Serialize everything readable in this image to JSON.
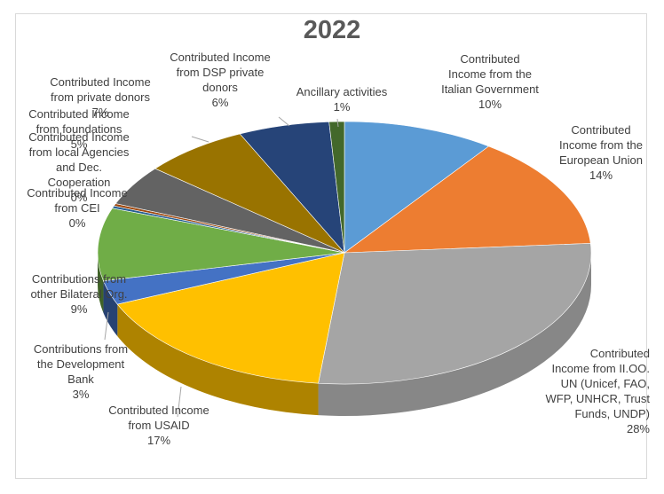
{
  "chart_data": {
    "type": "pie",
    "title": "2022",
    "slices": [
      {
        "label": "Contributed Income from the Italian Government",
        "value": 10,
        "display": "10%",
        "color": "#5b9bd5"
      },
      {
        "label": "Contributed Income from the European Union",
        "value": 14,
        "display": "14%",
        "color": "#ed7d31"
      },
      {
        "label": "Contributed Income from II.OO. UN (Unicef, FAO, WFP, UNHCR, Trust Funds, UNDP)",
        "value": 28,
        "display": "28%",
        "color": "#a5a5a5"
      },
      {
        "label": "Contributed Income from USAID",
        "value": 17,
        "display": "17%",
        "color": "#ffc000"
      },
      {
        "label": "Contributions from the Development Bank",
        "value": 3,
        "display": "3%",
        "color": "#4472c4"
      },
      {
        "label": "Contributions from other Bilateral Org.",
        "value": 9,
        "display": "9%",
        "color": "#70ad47"
      },
      {
        "label": "Contributed Income from CEI",
        "value": 0.3,
        "display": "0%",
        "color": "#255e91"
      },
      {
        "label": "Contributed Income from local Agencies and Dec. Cooperation",
        "value": 0.3,
        "display": "0%",
        "color": "#9e480e"
      },
      {
        "label": "Contributed Income from foundations",
        "value": 5,
        "display": "5%",
        "color": "#636363"
      },
      {
        "label": "Contributed Income from private donors",
        "value": 7,
        "display": "7%",
        "color": "#997300"
      },
      {
        "label": "Contributed Income from DSP private donors",
        "value": 6,
        "display": "6%",
        "color": "#264478"
      },
      {
        "label": "Ancillary activities",
        "value": 1,
        "display": "1%",
        "color": "#43682b"
      }
    ]
  },
  "labels": {
    "italian_gov": {
      "lines": [
        "Contributed",
        "Income from the",
        "Italian Government"
      ],
      "pct": "10%"
    },
    "eu": {
      "lines": [
        "Contributed",
        "Income from the",
        "European Union"
      ],
      "pct": "14%"
    },
    "un": {
      "lines": [
        "Contributed",
        "Income from II.OO.",
        "UN (Unicef, FAO,",
        "WFP, UNHCR, Trust",
        "Funds, UNDP)"
      ],
      "pct": "28%"
    },
    "usaid": {
      "lines": [
        "Contributed Income",
        "from USAID"
      ],
      "pct": "17%"
    },
    "dev_bank": {
      "lines": [
        "Contributions from",
        "the Development",
        "Bank"
      ],
      "pct": "3%"
    },
    "bilateral": {
      "lines": [
        "Contributions from",
        "other Bilateral Org."
      ],
      "pct": "9%"
    },
    "cei": {
      "lines": [
        "Contributed Income",
        "from CEI"
      ],
      "pct": "0%"
    },
    "local": {
      "lines": [
        "Contributed Income",
        "from local Agencies",
        "and Dec.",
        "Cooperation"
      ],
      "pct": "0%"
    },
    "foundations": {
      "lines": [
        "Contributed Income",
        "from foundations"
      ],
      "pct": "5%"
    },
    "private": {
      "lines": [
        "Contributed Income",
        "from private donors"
      ],
      "pct": "7%"
    },
    "dsp": {
      "lines": [
        "Contributed Income",
        "from DSP private",
        "donors"
      ],
      "pct": "6%"
    },
    "ancillary": {
      "lines": [
        "Ancillary activities"
      ],
      "pct": "1%"
    }
  }
}
